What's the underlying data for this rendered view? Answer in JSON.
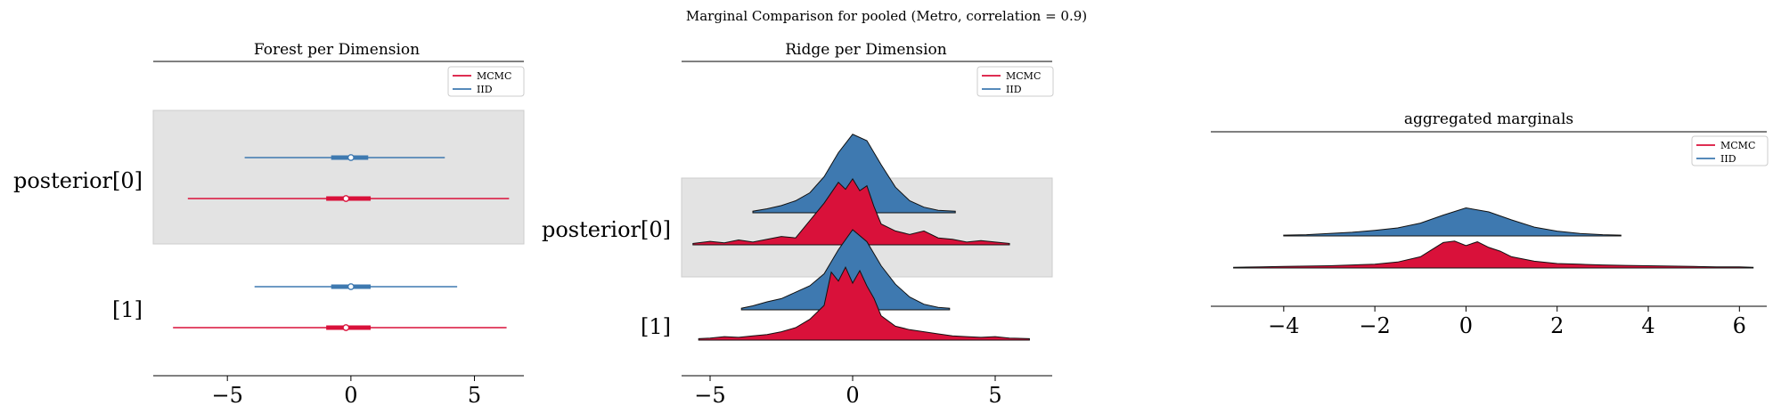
{
  "figure": {
    "suptitle": "Marginal Comparison for pooled (Metro, correlation = 0.9)"
  },
  "legend": {
    "mcmc": "MCMC",
    "iid": "IID"
  },
  "colors": {
    "mcmc": "#d9113a",
    "iid": "#3e79b0",
    "band": "#e3e3e3",
    "outline": "#111111"
  },
  "chart_data": [
    {
      "type": "forest",
      "title": "Forest per Dimension",
      "labels": [
        "posterior[0]",
        "[1]"
      ],
      "x_ticks": [
        -5,
        0,
        5
      ],
      "x_tick_labels": [
        "−5",
        "0",
        "5"
      ],
      "xlim": [
        -8,
        7
      ],
      "highlight_row": 0,
      "series": [
        {
          "name": "MCMC",
          "rows": [
            {
              "row": 0,
              "min": -6.6,
              "q25": -1.0,
              "median": -0.2,
              "q75": 0.8,
              "max": 6.4,
              "hdi_lo": -1.0,
              "hdi_hi": 0.8
            },
            {
              "row": 1,
              "min": -7.2,
              "q25": -1.0,
              "median": -0.2,
              "q75": 0.8,
              "max": 6.3,
              "hdi_lo": -1.0,
              "hdi_hi": 0.8
            }
          ]
        },
        {
          "name": "IID",
          "rows": [
            {
              "row": 0,
              "min": -4.3,
              "q25": -0.8,
              "median": 0.0,
              "q75": 0.7,
              "max": 3.8,
              "hdi_lo": -0.8,
              "hdi_hi": 0.7
            },
            {
              "row": 1,
              "min": -3.9,
              "q25": -0.8,
              "median": 0.0,
              "q75": 0.8,
              "max": 4.3,
              "hdi_lo": -0.8,
              "hdi_hi": 0.8
            }
          ]
        }
      ]
    },
    {
      "type": "ridge",
      "title": "Ridge per Dimension",
      "labels": [
        "posterior[0]",
        "[1]"
      ],
      "x_ticks": [
        -5,
        0,
        5
      ],
      "x_tick_labels": [
        "−5",
        "0",
        "5"
      ],
      "xlim": [
        -6,
        7
      ],
      "highlight_row": 0,
      "rows": [
        {
          "row": 0,
          "series": [
            {
              "name": "IID",
              "x": [
                -3.5,
                -3,
                -2.5,
                -2,
                -1.5,
                -1,
                -0.5,
                0,
                0.5,
                1,
                1.5,
                2,
                2.5,
                3,
                3.6
              ],
              "y": [
                0.02,
                0.05,
                0.09,
                0.15,
                0.25,
                0.45,
                0.75,
                0.98,
                0.9,
                0.6,
                0.32,
                0.15,
                0.07,
                0.03,
                0.02
              ]
            },
            {
              "name": "MCMC",
              "x": [
                -5.6,
                -5,
                -4.5,
                -4,
                -3.5,
                -3,
                -2.5,
                -2,
                -1.5,
                -1,
                -0.5,
                -0.25,
                0,
                0.25,
                0.5,
                0.75,
                1,
                1.5,
                2,
                2.5,
                3,
                3.5,
                4,
                4.5,
                5,
                5.5
              ],
              "y": [
                0.02,
                0.05,
                0.03,
                0.07,
                0.04,
                0.08,
                0.12,
                0.1,
                0.35,
                0.6,
                0.9,
                0.8,
                0.95,
                0.78,
                0.85,
                0.55,
                0.3,
                0.2,
                0.15,
                0.2,
                0.1,
                0.08,
                0.04,
                0.06,
                0.04,
                0.02
              ]
            }
          ]
        },
        {
          "row": 1,
          "series": [
            {
              "name": "IID",
              "x": [
                -3.9,
                -3.5,
                -3,
                -2.5,
                -2,
                -1.5,
                -1,
                -0.5,
                0,
                0.5,
                1,
                1.5,
                2,
                2.5,
                3,
                3.4
              ],
              "y": [
                0.02,
                0.05,
                0.1,
                0.14,
                0.22,
                0.3,
                0.45,
                0.75,
                1.0,
                0.85,
                0.55,
                0.32,
                0.16,
                0.07,
                0.03,
                0.02
              ]
            },
            {
              "name": "MCMC",
              "x": [
                -5.4,
                -5,
                -4.5,
                -4,
                -3.5,
                -3,
                -2.5,
                -2,
                -1.5,
                -1,
                -0.75,
                -0.5,
                -0.25,
                0,
                0.25,
                0.5,
                0.75,
                1,
                1.5,
                2,
                2.5,
                3,
                3.5,
                4,
                4.5,
                5,
                5.5,
                6.2
              ],
              "y": [
                0.02,
                0.03,
                0.05,
                0.04,
                0.06,
                0.08,
                0.12,
                0.18,
                0.3,
                0.5,
                0.98,
                0.85,
                1.05,
                0.82,
                1.0,
                0.78,
                0.6,
                0.35,
                0.2,
                0.15,
                0.12,
                0.09,
                0.06,
                0.05,
                0.04,
                0.05,
                0.03,
                0.02
              ]
            }
          ]
        }
      ]
    },
    {
      "type": "ridge",
      "title": "aggregated marginals",
      "x_ticks": [
        -4,
        -2,
        0,
        2,
        4,
        6
      ],
      "x_tick_labels": [
        "−4",
        "−2",
        "0",
        "2",
        "4",
        "6"
      ],
      "xlim": [
        -5.6,
        6.6
      ],
      "series": [
        {
          "name": "IID",
          "x": [
            -4,
            -3.5,
            -3,
            -2.5,
            -2,
            -1.5,
            -1,
            -0.5,
            0,
            0.5,
            1,
            1.5,
            2,
            2.5,
            3,
            3.4
          ],
          "y": [
            0.02,
            0.03,
            0.06,
            0.09,
            0.14,
            0.2,
            0.32,
            0.52,
            0.7,
            0.6,
            0.4,
            0.22,
            0.12,
            0.06,
            0.03,
            0.02
          ]
        },
        {
          "name": "MCMC",
          "x": [
            -5.1,
            -4.5,
            -4,
            -3.5,
            -3,
            -2.5,
            -2,
            -1.5,
            -1,
            -0.5,
            -0.25,
            0,
            0.25,
            0.5,
            0.75,
            1,
            1.5,
            2,
            2.5,
            3,
            3.5,
            4,
            4.5,
            5,
            5.5,
            6,
            6.3
          ],
          "y": [
            0.02,
            0.03,
            0.04,
            0.05,
            0.06,
            0.08,
            0.1,
            0.16,
            0.3,
            0.68,
            0.72,
            0.6,
            0.7,
            0.55,
            0.45,
            0.3,
            0.18,
            0.12,
            0.1,
            0.08,
            0.07,
            0.06,
            0.05,
            0.04,
            0.03,
            0.03,
            0.02
          ]
        }
      ]
    }
  ]
}
